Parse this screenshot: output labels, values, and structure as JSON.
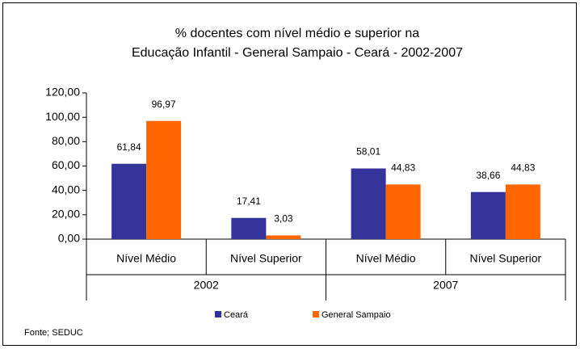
{
  "chart_data": {
    "type": "bar",
    "title": [
      "% docentes com nível médio e superior na",
      "Educação Infantil - General Sampaio -  Ceará - 2002-2007"
    ],
    "groups": [
      {
        "name": "2002",
        "categories": [
          "Nível Médio",
          "Nível Superior"
        ]
      },
      {
        "name": "2007",
        "categories": [
          "Nível Médio",
          "Nível Superior"
        ]
      }
    ],
    "series": [
      {
        "name": "Ceará",
        "color": "#333399",
        "values": [
          61.84,
          17.41,
          58.01,
          38.66
        ],
        "value_labels": [
          "61,84",
          "17,41",
          "58,01",
          "38,66"
        ]
      },
      {
        "name": "General Sampaio",
        "color": "#ff6600",
        "values": [
          96.97,
          3.03,
          44.83,
          44.83
        ],
        "value_labels": [
          "96,97",
          "3,03",
          "44,83",
          "44,83"
        ]
      }
    ],
    "ylim": [
      0,
      120
    ],
    "yticks": [
      {
        "value": 0,
        "label": "0,00"
      },
      {
        "value": 20,
        "label": "20,00"
      },
      {
        "value": 40,
        "label": "40,00"
      },
      {
        "value": 60,
        "label": "60,00"
      },
      {
        "value": 80,
        "label": "80,00"
      },
      {
        "value": 100,
        "label": "100,00"
      },
      {
        "value": 120,
        "label": "120,00"
      }
    ],
    "legend": "bottom",
    "source": "Fonte; SEDUC"
  }
}
